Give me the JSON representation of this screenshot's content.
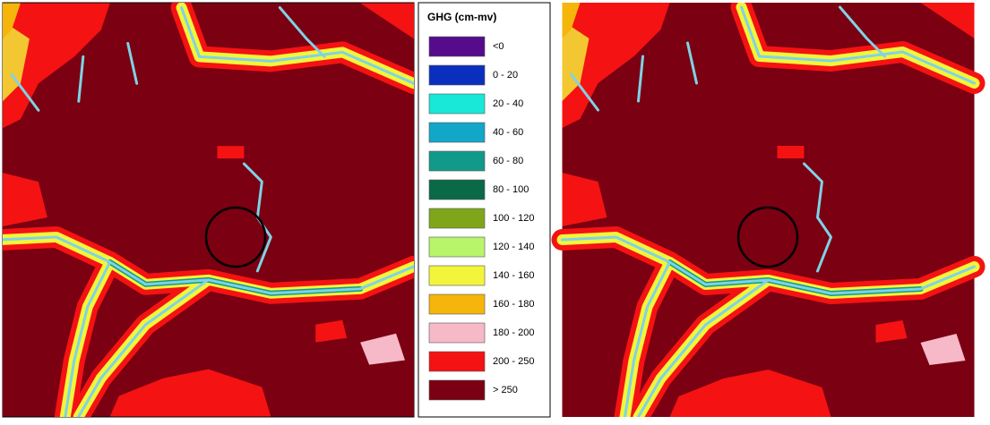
{
  "legend": {
    "title": "GHG (cm-mv)",
    "items": [
      {
        "label": "<0",
        "color": "#560a8c"
      },
      {
        "label": "0 - 20",
        "color": "#0a2fbf"
      },
      {
        "label": "20 - 40",
        "color": "#19e8d8"
      },
      {
        "label": "40 - 60",
        "color": "#12a6c8"
      },
      {
        "label": "60 - 80",
        "color": "#119a8a"
      },
      {
        "label": "80 - 100",
        "color": "#0a6a48"
      },
      {
        "label": "100 - 120",
        "color": "#7fa61a"
      },
      {
        "label": "120 - 140",
        "color": "#b8f56a"
      },
      {
        "label": "140 - 160",
        "color": "#f2f53a"
      },
      {
        "label": "160 - 180",
        "color": "#f5b50a"
      },
      {
        "label": "180 - 200",
        "color": "#f7b8c8"
      },
      {
        "label": "200 - 250",
        "color": "#f51212"
      },
      {
        "label": "> 250",
        "color": "#7a0012"
      }
    ]
  }
}
